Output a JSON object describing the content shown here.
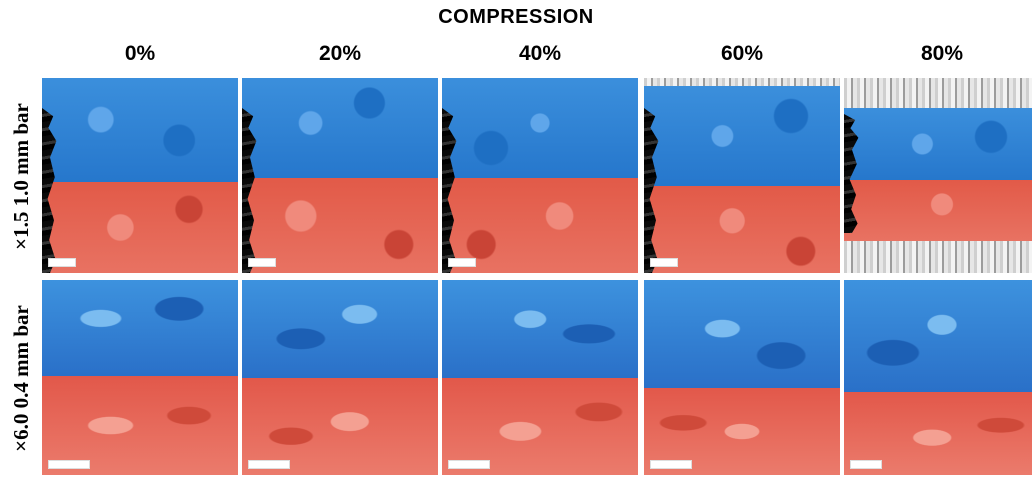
{
  "figure": {
    "title": "COMPRESSION",
    "columns": [
      "0%",
      "20%",
      "40%",
      "60%",
      "80%"
    ],
    "rows": [
      {
        "label": "×1.5  1.0 mm bar"
      },
      {
        "label": "×6.0  0.4 mm bar"
      }
    ],
    "colors": {
      "blue_layer": "#2a7fd4",
      "red_layer": "#e35b4c",
      "scale_bar": "#ffffff"
    }
  }
}
